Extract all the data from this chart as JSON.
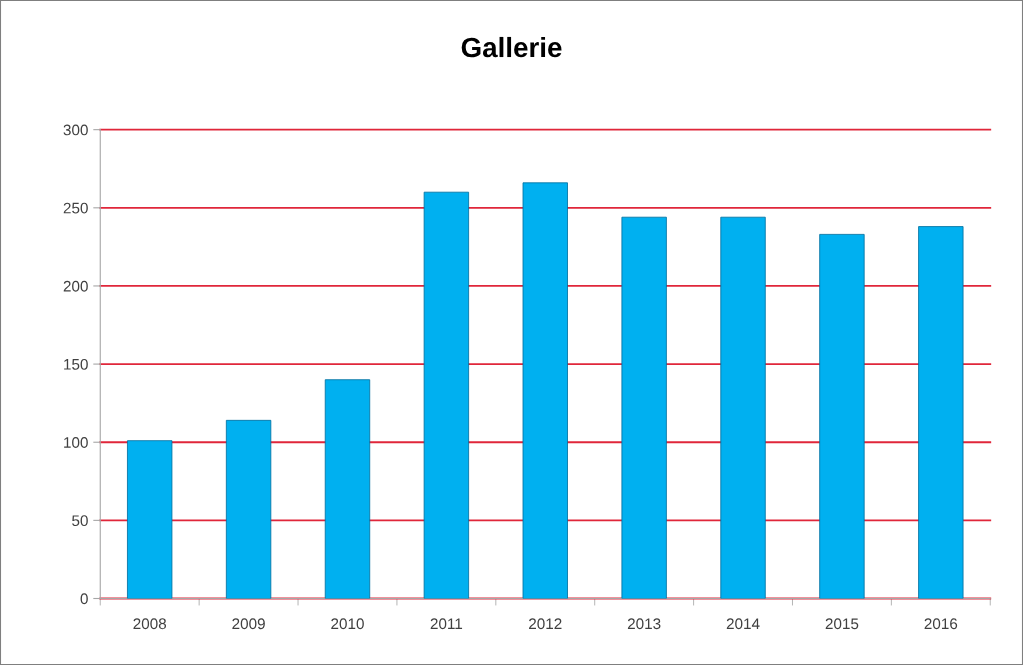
{
  "chart_data": {
    "type": "bar",
    "title": "Gallerie",
    "categories": [
      "2008",
      "2009",
      "2010",
      "2011",
      "2012",
      "2013",
      "2014",
      "2015",
      "2016"
    ],
    "values": [
      101,
      114,
      140,
      260,
      266,
      244,
      244,
      233,
      238
    ],
    "color": "#00b0f0",
    "ylim": [
      0,
      300
    ],
    "yticks": [
      0,
      50,
      100,
      150,
      200,
      250,
      300
    ],
    "grid": "y"
  }
}
